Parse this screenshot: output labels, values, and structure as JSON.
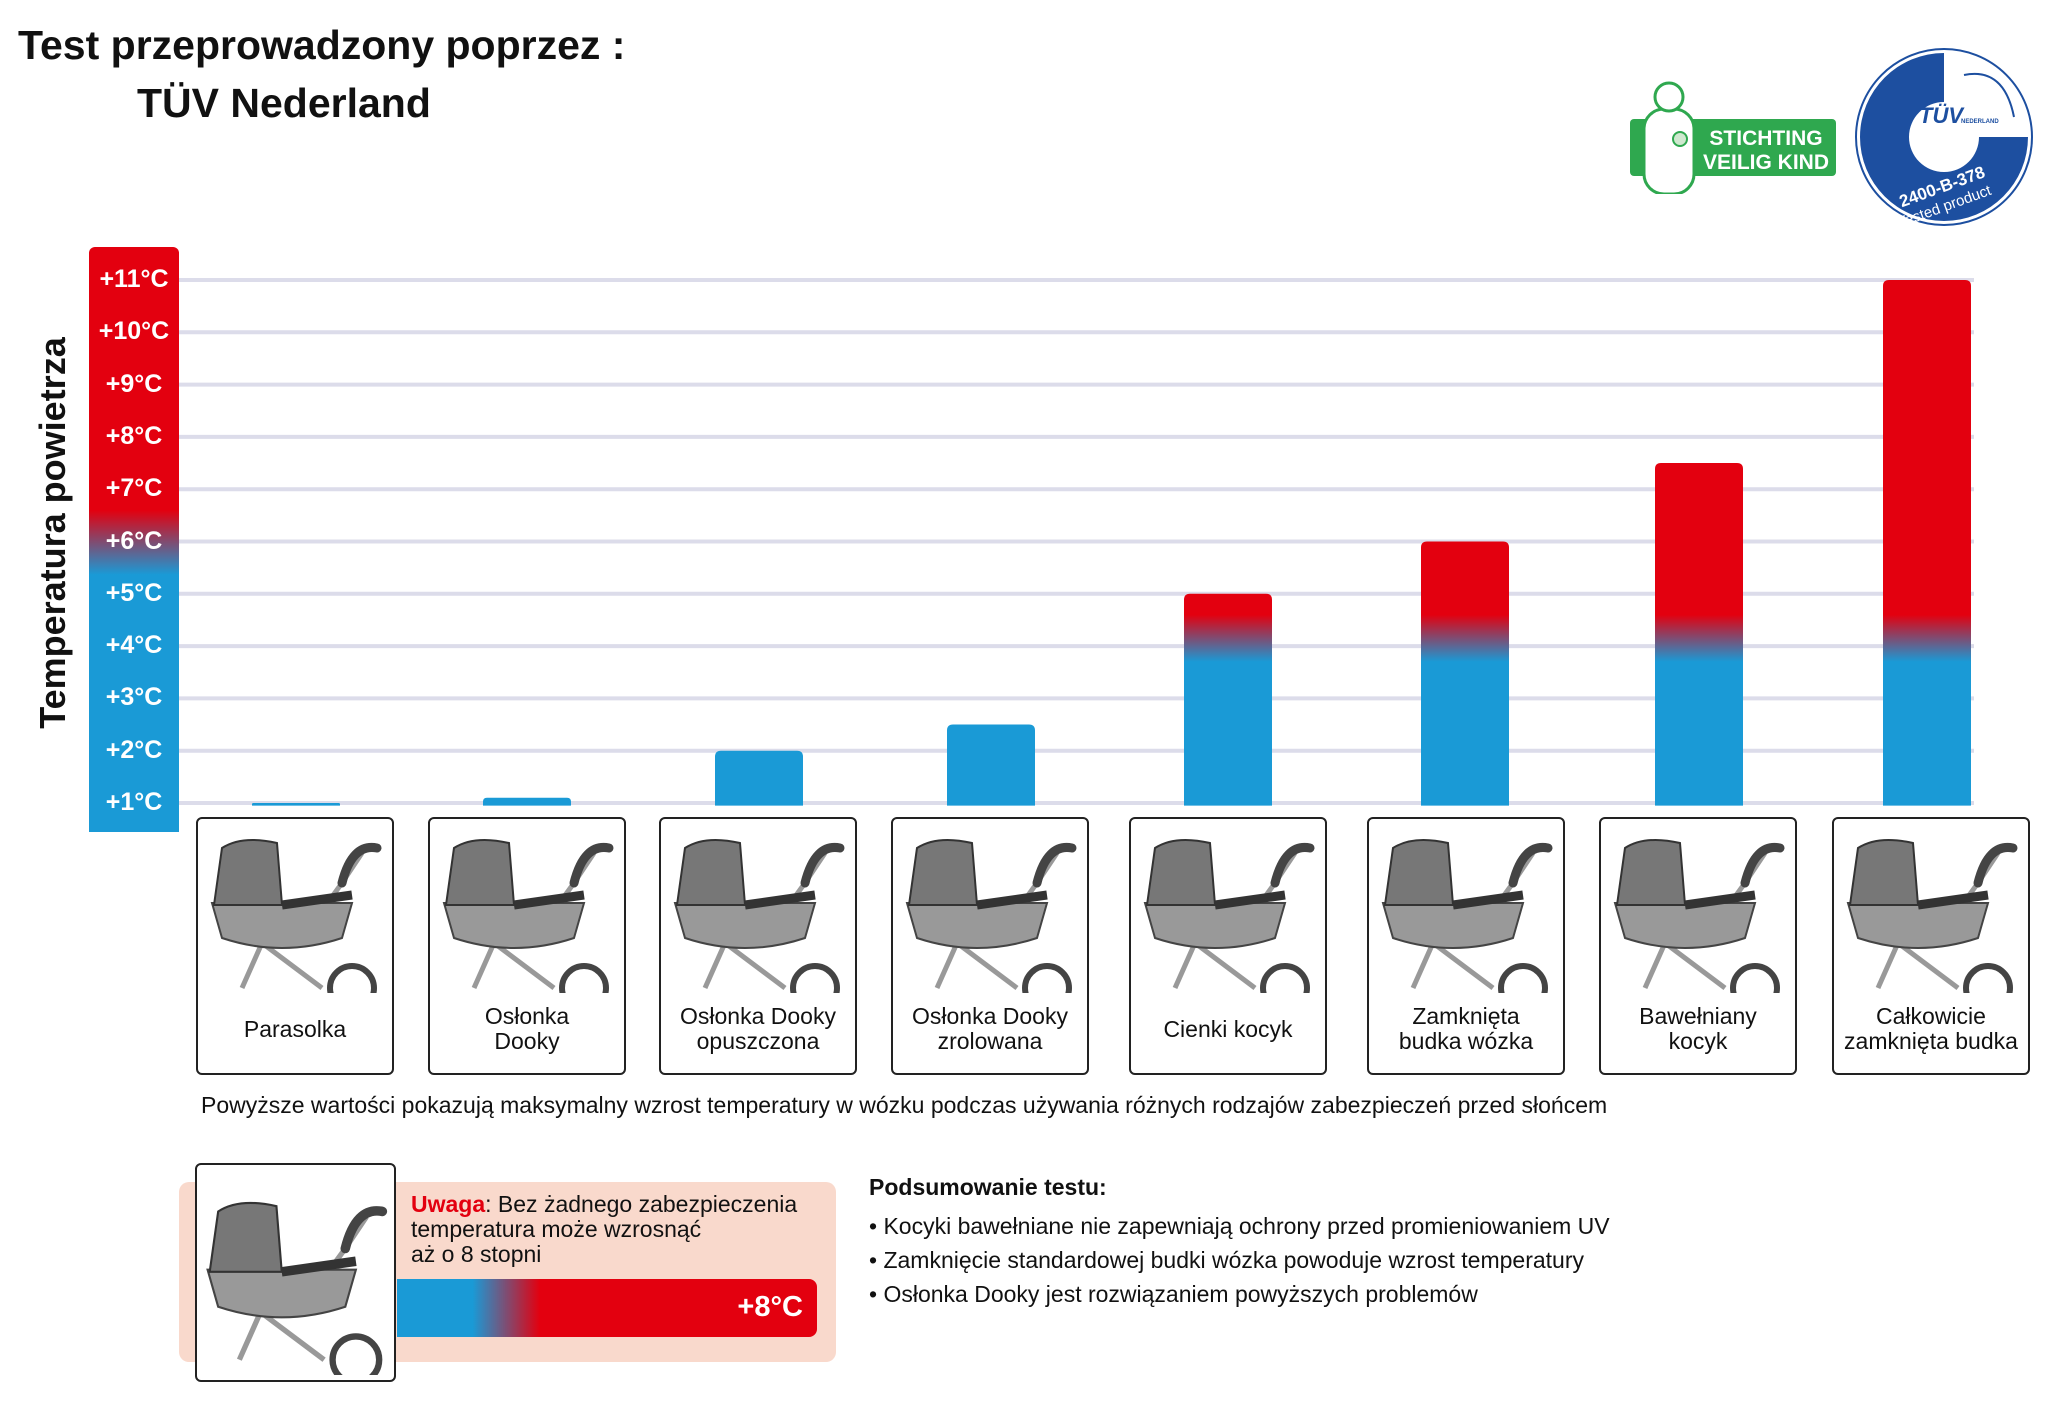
{
  "header": {
    "line1": "Test przeprowadzony poprzez :",
    "line2": "TÜV Nederland"
  },
  "logos": {
    "veilig_kind": [
      "STICHTING",
      "VEILIG KIND"
    ],
    "tuv": {
      "brand": "TÜV",
      "sub": "NEDERLAND",
      "code": "2400-B-378",
      "tested": "Tested product"
    }
  },
  "colors": {
    "hot": "#e3000f",
    "cool": "#1a9ad6",
    "grid": "#dcdcea",
    "warning_bg": "#f9d9cc"
  },
  "chart_data": {
    "type": "bar",
    "ylabel": "Temperatura powietrza",
    "ytick_labels": [
      "+1°C",
      "+2°C",
      "+3°C",
      "+4°C",
      "+5°C",
      "+6°C",
      "+7°C",
      "+8°C",
      "+9°C",
      "+10°C",
      "+11°C"
    ],
    "ylim": [
      1,
      11
    ],
    "grid": true,
    "categories": [
      "Parasolka",
      "Osłonka Dooky",
      "Osłonka Dooky opuszczona",
      "Osłonka Dooky zrolowana",
      "Cienki kocyk",
      "Zamknięta budka wózka",
      "Bawełniany kocyk",
      "Całkowicie zamknięta budka"
    ],
    "category_lines": [
      [
        "Parasolka"
      ],
      [
        "Osłonka",
        "Dooky"
      ],
      [
        "Osłonka Dooky",
        "opuszczona"
      ],
      [
        "Osłonka Dooky",
        "zrolowana"
      ],
      [
        "Cienki kocyk"
      ],
      [
        "Zamknięta",
        "budka wózka"
      ],
      [
        "Bawełniany",
        "kocyk"
      ],
      [
        "Całkowicie",
        "zamknięta budka"
      ]
    ],
    "values": [
      1.0,
      1.1,
      2.0,
      2.5,
      5.0,
      6.0,
      7.5,
      11.0
    ]
  },
  "caption": "Powyższe wartości pokazują maksymalny wzrost temperatury w wózku podczas używania różnych rodzajów zabezpieczeń przed słońcem",
  "warning": {
    "label": "Uwaga",
    "text_1": ": Bez żadnego zabezpieczenia",
    "text_2": "temperatura może wzrosnąć",
    "text_3": "aż o 8 stopni",
    "value": "+8°C"
  },
  "summary": {
    "title": "Podsumowanie testu:",
    "bullets": [
      "• Kocyki bawełniane nie zapewniają ochrony przed promieniowaniem UV",
      "• Zamknięcie standardowej budki wózka powoduje wzrost temperatury",
      "• Osłonka Dooky jest rozwiązaniem powyższych problemów"
    ]
  }
}
